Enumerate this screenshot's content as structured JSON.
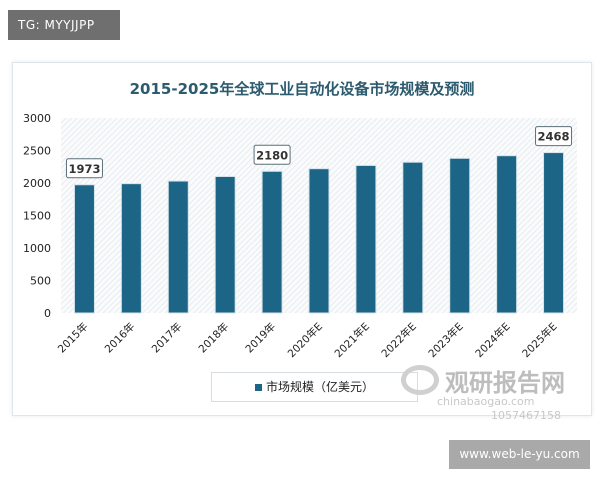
{
  "badge": "TG: MYYJJPP",
  "site": "www.web-le-yu.com",
  "watermark": {
    "brand": "观研报告网",
    "line1": "chinabaogao.com",
    "line2": "10574671​58"
  },
  "chart_data": {
    "type": "bar",
    "title": "2015-2025年全球工业自动化设备市场规模及预测",
    "categories": [
      "2015年",
      "2016年",
      "2017年",
      "2018年",
      "2019年",
      "2020年E",
      "2021年E",
      "2022年E",
      "2023年E",
      "2024年E",
      "2025年E"
    ],
    "series": [
      {
        "name": "市场规模（亿美元）",
        "values": [
          1973,
          1990,
          2030,
          2100,
          2180,
          2220,
          2270,
          2320,
          2380,
          2420,
          2468
        ],
        "color": "#1c6586"
      }
    ],
    "data_labels": {
      "0": "1973",
      "4": "2180",
      "10": "2468"
    },
    "ylim": [
      0,
      3000
    ],
    "yticks": [
      "0",
      "500",
      "1000",
      "1500",
      "2000",
      "2500",
      "3000"
    ],
    "legend": "bottom",
    "grid": false,
    "plot_background": "hatched"
  }
}
